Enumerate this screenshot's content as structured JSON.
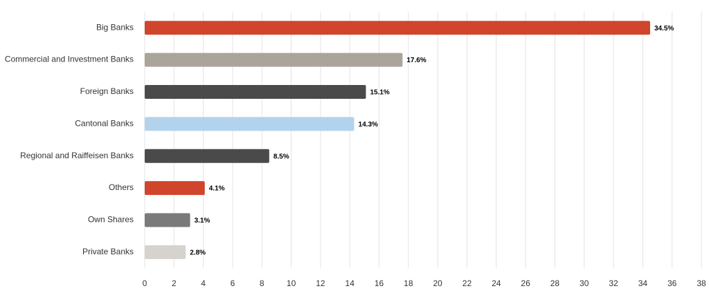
{
  "chart_data": {
    "type": "bar",
    "orientation": "horizontal",
    "categories": [
      "Big Banks",
      "Commercial and Investment Banks",
      "Foreign Banks",
      "Cantonal Banks",
      "Regional and Raiffeisen Banks",
      "Others",
      "Own Shares",
      "Private Banks"
    ],
    "values": [
      34.5,
      17.6,
      15.1,
      14.3,
      8.5,
      4.1,
      3.1,
      2.8
    ],
    "value_labels": [
      "34.5%",
      "17.6%",
      "15.1%",
      "14.3%",
      "8.5%",
      "4.1%",
      "3.1%",
      "2.8%"
    ],
    "colors": [
      "#d0452b",
      "#aba49a",
      "#4a4a4a",
      "#b3d3ec",
      "#4a4a4a",
      "#d0452b",
      "#7a7a7a",
      "#d6d3cf"
    ],
    "xlim": [
      0,
      38
    ],
    "xticks": [
      0,
      2,
      4,
      6,
      8,
      10,
      12,
      14,
      16,
      18,
      20,
      22,
      24,
      26,
      28,
      30,
      32,
      34,
      36,
      38
    ],
    "grid": true
  }
}
